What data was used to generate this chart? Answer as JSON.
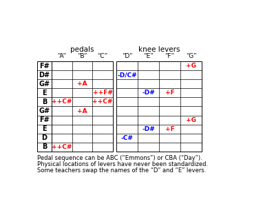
{
  "title_pedals": "pedals",
  "title_knee": "knee levers",
  "col_headers": [
    "“A”",
    "“B”",
    "“C”",
    "“D”",
    "“E”",
    "“F”",
    "“G”"
  ],
  "row_labels": [
    "F#",
    "D#",
    "G#",
    "E",
    "B",
    "G#",
    "F#",
    "E",
    "D",
    "B"
  ],
  "cells": [
    [
      "",
      "",
      "",
      "",
      "",
      "",
      "+G"
    ],
    [
      "",
      "",
      "",
      "-D/C#",
      "",
      "",
      ""
    ],
    [
      "",
      "+A",
      "",
      "",
      "",
      "",
      ""
    ],
    [
      "",
      "",
      "++F#",
      "",
      "-D#",
      "+F",
      ""
    ],
    [
      "++C#",
      "",
      "++C#",
      "",
      "",
      "",
      ""
    ],
    [
      "",
      "+A",
      "",
      "",
      "",
      "",
      ""
    ],
    [
      "",
      "",
      "",
      "",
      "",
      "",
      "+G"
    ],
    [
      "",
      "",
      "",
      "",
      "-D#",
      "+F",
      ""
    ],
    [
      "",
      "",
      "",
      "-C#",
      "",
      "",
      ""
    ],
    [
      "++C#",
      "",
      "",
      "",
      "",
      "",
      ""
    ]
  ],
  "cell_colors": [
    [
      "",
      "",
      "",
      "",
      "",
      "",
      "red"
    ],
    [
      "",
      "",
      "",
      "blue",
      "",
      "",
      ""
    ],
    [
      "",
      "red",
      "",
      "",
      "",
      "",
      ""
    ],
    [
      "",
      "",
      "red",
      "",
      "blue",
      "red",
      ""
    ],
    [
      "red",
      "",
      "red",
      "",
      "",
      "",
      ""
    ],
    [
      "",
      "red",
      "",
      "",
      "",
      "",
      ""
    ],
    [
      "",
      "",
      "",
      "",
      "",
      "",
      "red"
    ],
    [
      "",
      "",
      "",
      "",
      "blue",
      "red",
      ""
    ],
    [
      "",
      "",
      "",
      "blue",
      "",
      "",
      ""
    ],
    [
      "red",
      "",
      "",
      "",
      "",
      "",
      ""
    ]
  ],
  "footer_lines": [
    "Pedal sequence can be ABC (“Emmons”) or CBA (“Day”).",
    "Physical locations of levers have never been standardized.",
    "Some teachers swap the names of the “D” and “E” levers."
  ],
  "bg_color": "#ffffff"
}
